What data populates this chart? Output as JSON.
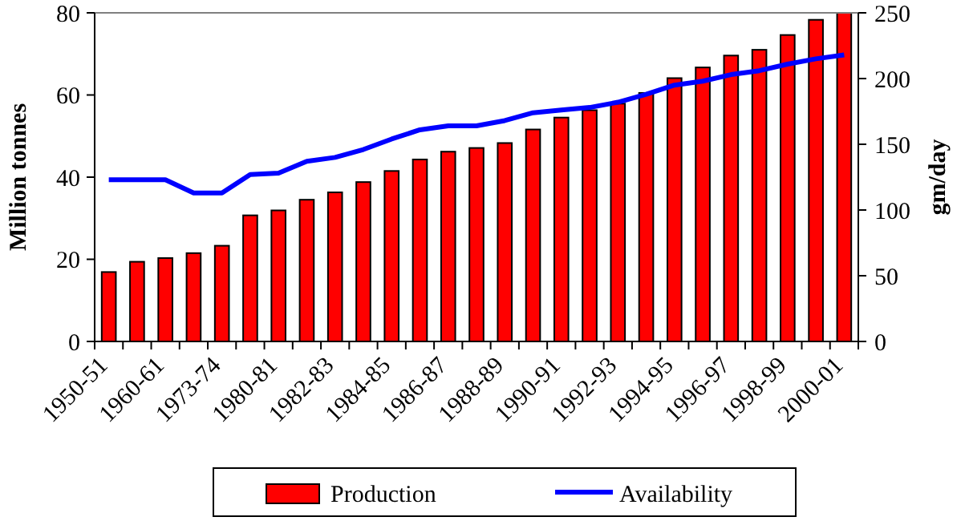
{
  "chart_data": {
    "type": "bar",
    "ylabel": "Million tonnes",
    "y2label": "gm/day",
    "categories": [
      "1950-51",
      null,
      "1960-61",
      null,
      "1973-74",
      null,
      "1980-81",
      null,
      "1982-83",
      null,
      "1984-85",
      null,
      "1986-87",
      null,
      "1988-89",
      null,
      "1990-91",
      null,
      "1992-93",
      null,
      "1994-95",
      null,
      "1996-97",
      null,
      "1998-99",
      null,
      "2000-01"
    ],
    "series": [
      {
        "name": "Production",
        "type": "bar",
        "color": "#ff0000",
        "values": [
          16.9,
          19.4,
          20.3,
          21.5,
          23.3,
          30.7,
          31.9,
          34.5,
          36.3,
          38.8,
          41.5,
          44.3,
          46.2,
          47.1,
          48.3,
          51.6,
          54.5,
          56.3,
          57.9,
          60.5,
          64.1,
          66.7,
          69.6,
          71.0,
          74.6,
          78.3,
          80
        ]
      },
      {
        "name": "Availability",
        "type": "line",
        "axis": "y2",
        "color": "#0000ff",
        "values": [
          123,
          123,
          123,
          113,
          113,
          127,
          128,
          137,
          140,
          146,
          154,
          161,
          164,
          164,
          168,
          174,
          176,
          178,
          182,
          188,
          195,
          198,
          203,
          206,
          211,
          215,
          218
        ]
      }
    ],
    "ylim": [
      0,
      80
    ],
    "yticks": [
      0,
      20,
      40,
      60,
      80
    ],
    "y2lim": [
      0,
      250
    ],
    "y2ticks": [
      0,
      50,
      100,
      150,
      200,
      250
    ],
    "grid": false,
    "legend": "bottom",
    "marker": "none"
  }
}
